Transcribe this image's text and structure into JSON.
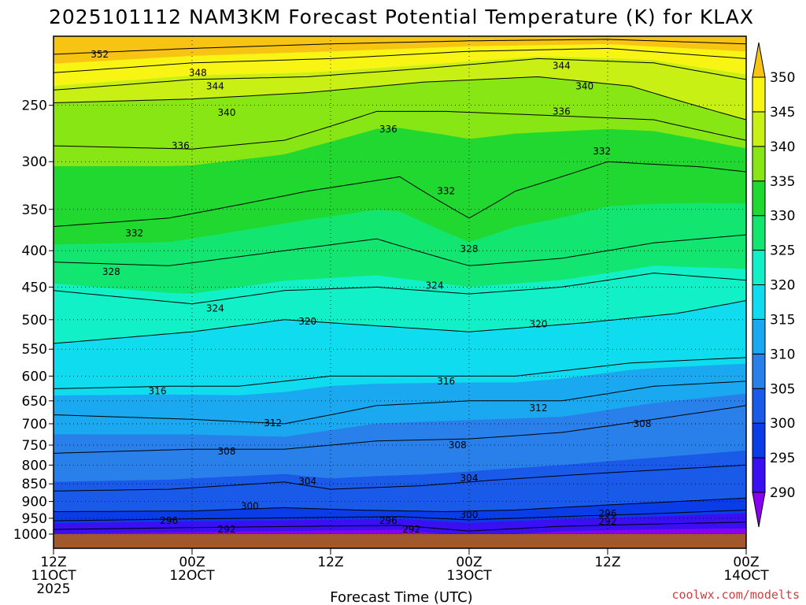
{
  "chart_data": {
    "type": "heatmap",
    "title": "2025101112 NAM3KM Forecast Potential Temperature (K) for KLAX",
    "xlabel": "Forecast Time (UTC)",
    "ylabel": "",
    "y_axis": {
      "scale": "log-pressure",
      "unit": "hPa",
      "inverted": true,
      "ticks": [
        250,
        300,
        350,
        400,
        450,
        500,
        550,
        600,
        650,
        700,
        750,
        800,
        850,
        900,
        950,
        1000
      ],
      "range": [
        200,
        1000
      ]
    },
    "x_axis": {
      "range_hours": [
        0,
        60
      ],
      "ticks": [
        {
          "hour": 0,
          "lines": [
            "12Z",
            "11OCT",
            "2025"
          ]
        },
        {
          "hour": 12,
          "lines": [
            "00Z",
            "12OCT"
          ]
        },
        {
          "hour": 24,
          "lines": [
            "12Z"
          ]
        },
        {
          "hour": 36,
          "lines": [
            "00Z",
            "13OCT"
          ]
        },
        {
          "hour": 48,
          "lines": [
            "12Z"
          ]
        },
        {
          "hour": 60,
          "lines": [
            "00Z",
            "14OCT"
          ]
        }
      ]
    },
    "colorbar": {
      "levels": [
        290,
        295,
        300,
        305,
        310,
        315,
        320,
        325,
        330,
        335,
        340,
        345,
        350
      ],
      "colors": [
        "#8a00f0",
        "#3a10f2",
        "#0a3ce8",
        "#1a5ae8",
        "#2a80ea",
        "#1aa8f0",
        "#10dcf0",
        "#12f0c8",
        "#12e670",
        "#20d830",
        "#88e614",
        "#c8f014",
        "#f8f414",
        "#f8c414"
      ],
      "extend": "both"
    },
    "contour_interval": 2,
    "contour_lines": [
      {
        "level": 292,
        "points": [
          [
            0,
            985
          ],
          [
            10,
            980
          ],
          [
            22,
            975
          ],
          [
            30,
            972
          ],
          [
            36,
            990
          ],
          [
            44,
            975
          ],
          [
            52,
            968
          ],
          [
            60,
            962
          ]
        ]
      },
      {
        "level": 296,
        "points": [
          [
            0,
            958
          ],
          [
            12,
            952
          ],
          [
            22,
            948
          ],
          [
            30,
            945
          ],
          [
            36,
            955
          ],
          [
            44,
            945
          ],
          [
            52,
            936
          ],
          [
            60,
            925
          ]
        ]
      },
      {
        "level": 300,
        "points": [
          [
            0,
            930
          ],
          [
            12,
            928
          ],
          [
            20,
            918
          ],
          [
            26,
            925
          ],
          [
            34,
            930
          ],
          [
            40,
            925
          ],
          [
            48,
            910
          ],
          [
            60,
            890
          ]
        ]
      },
      {
        "level": 304,
        "points": [
          [
            0,
            870
          ],
          [
            10,
            865
          ],
          [
            20,
            845
          ],
          [
            24,
            865
          ],
          [
            32,
            855
          ],
          [
            38,
            840
          ],
          [
            48,
            820
          ],
          [
            60,
            800
          ]
        ]
      },
      {
        "level": 308,
        "points": [
          [
            0,
            770
          ],
          [
            12,
            760
          ],
          [
            20,
            760
          ],
          [
            28,
            740
          ],
          [
            36,
            735
          ],
          [
            44,
            720
          ],
          [
            52,
            690
          ],
          [
            60,
            660
          ]
        ]
      },
      {
        "level": 312,
        "points": [
          [
            0,
            680
          ],
          [
            12,
            690
          ],
          [
            20,
            700
          ],
          [
            28,
            660
          ],
          [
            36,
            650
          ],
          [
            44,
            650
          ],
          [
            52,
            620
          ],
          [
            60,
            610
          ]
        ]
      },
      {
        "level": 316,
        "points": [
          [
            0,
            625
          ],
          [
            10,
            620
          ],
          [
            16,
            620
          ],
          [
            24,
            600
          ],
          [
            32,
            600
          ],
          [
            40,
            600
          ],
          [
            50,
            575
          ],
          [
            60,
            565
          ]
        ]
      },
      {
        "level": 320,
        "points": [
          [
            0,
            540
          ],
          [
            12,
            520
          ],
          [
            20,
            500
          ],
          [
            28,
            510
          ],
          [
            36,
            520
          ],
          [
            46,
            505
          ],
          [
            54,
            490
          ],
          [
            60,
            470
          ]
        ]
      },
      {
        "level": 324,
        "points": [
          [
            0,
            455
          ],
          [
            12,
            475
          ],
          [
            20,
            455
          ],
          [
            28,
            450
          ],
          [
            36,
            460
          ],
          [
            44,
            450
          ],
          [
            52,
            430
          ],
          [
            60,
            440
          ]
        ]
      },
      {
        "level": 328,
        "points": [
          [
            0,
            415
          ],
          [
            10,
            420
          ],
          [
            20,
            400
          ],
          [
            28,
            385
          ],
          [
            36,
            420
          ],
          [
            44,
            410
          ],
          [
            52,
            390
          ],
          [
            60,
            380
          ]
        ]
      },
      {
        "level": 332,
        "points": [
          [
            0,
            370
          ],
          [
            10,
            360
          ],
          [
            22,
            330
          ],
          [
            30,
            315
          ],
          [
            36,
            360
          ],
          [
            40,
            330
          ],
          [
            48,
            300
          ],
          [
            56,
            305
          ],
          [
            60,
            310
          ]
        ]
      },
      {
        "level": 336,
        "points": [
          [
            0,
            285
          ],
          [
            12,
            288
          ],
          [
            20,
            280
          ],
          [
            28,
            255
          ],
          [
            34,
            255
          ],
          [
            42,
            258
          ],
          [
            52,
            262
          ],
          [
            60,
            280
          ]
        ]
      },
      {
        "level": 340,
        "points": [
          [
            0,
            248
          ],
          [
            12,
            245
          ],
          [
            22,
            240
          ],
          [
            32,
            232
          ],
          [
            42,
            228
          ],
          [
            50,
            235
          ],
          [
            60,
            262
          ]
        ]
      },
      {
        "level": 344,
        "points": [
          [
            0,
            238
          ],
          [
            12,
            230
          ],
          [
            22,
            228
          ],
          [
            32,
            222
          ],
          [
            42,
            215
          ],
          [
            52,
            218
          ],
          [
            60,
            230
          ]
        ]
      },
      {
        "level": 348,
        "points": [
          [
            0,
            225
          ],
          [
            12,
            218
          ],
          [
            24,
            215
          ],
          [
            36,
            210
          ],
          [
            48,
            208
          ],
          [
            60,
            215
          ]
        ]
      },
      {
        "level": 352,
        "points": [
          [
            0,
            212
          ],
          [
            12,
            208
          ],
          [
            24,
            205
          ],
          [
            36,
            203
          ],
          [
            48,
            202
          ],
          [
            60,
            205
          ]
        ]
      }
    ],
    "contour_labels": [
      {
        "text": "352",
        "hour": 4,
        "p": 212
      },
      {
        "text": "348",
        "hour": 12.5,
        "p": 225
      },
      {
        "text": "344",
        "hour": 14,
        "p": 235
      },
      {
        "text": "340",
        "hour": 15,
        "p": 256
      },
      {
        "text": "336",
        "hour": 11,
        "p": 285
      },
      {
        "text": "332",
        "hour": 7,
        "p": 378
      },
      {
        "text": "328",
        "hour": 5,
        "p": 428
      },
      {
        "text": "324",
        "hour": 14,
        "p": 482
      },
      {
        "text": "320",
        "hour": 22,
        "p": 503
      },
      {
        "text": "316",
        "hour": 9,
        "p": 630
      },
      {
        "text": "312",
        "hour": 19,
        "p": 698
      },
      {
        "text": "308",
        "hour": 15,
        "p": 765
      },
      {
        "text": "304",
        "hour": 22,
        "p": 843
      },
      {
        "text": "300",
        "hour": 17,
        "p": 913
      },
      {
        "text": "296",
        "hour": 10,
        "p": 958
      },
      {
        "text": "292",
        "hour": 15,
        "p": 985
      },
      {
        "text": "336",
        "hour": 29,
        "p": 270
      },
      {
        "text": "332",
        "hour": 34,
        "p": 330
      },
      {
        "text": "328",
        "hour": 36,
        "p": 398
      },
      {
        "text": "324",
        "hour": 33,
        "p": 448
      },
      {
        "text": "320",
        "hour": 42,
        "p": 507
      },
      {
        "text": "316",
        "hour": 34,
        "p": 610
      },
      {
        "text": "312",
        "hour": 42,
        "p": 665
      },
      {
        "text": "308",
        "hour": 35,
        "p": 750
      },
      {
        "text": "304",
        "hour": 36,
        "p": 835
      },
      {
        "text": "300",
        "hour": 36,
        "p": 940
      },
      {
        "text": "296",
        "hour": 29,
        "p": 958
      },
      {
        "text": "292",
        "hour": 31,
        "p": 985
      },
      {
        "text": "344",
        "hour": 44,
        "p": 220
      },
      {
        "text": "340",
        "hour": 46,
        "p": 235
      },
      {
        "text": "336",
        "hour": 44,
        "p": 255
      },
      {
        "text": "332",
        "hour": 47.5,
        "p": 290
      },
      {
        "text": "308",
        "hour": 51,
        "p": 700
      },
      {
        "text": "296",
        "hour": 48,
        "p": 936
      },
      {
        "text": "292",
        "hour": 48,
        "p": 960
      }
    ]
  },
  "credit": "coolwx.com/modelts"
}
